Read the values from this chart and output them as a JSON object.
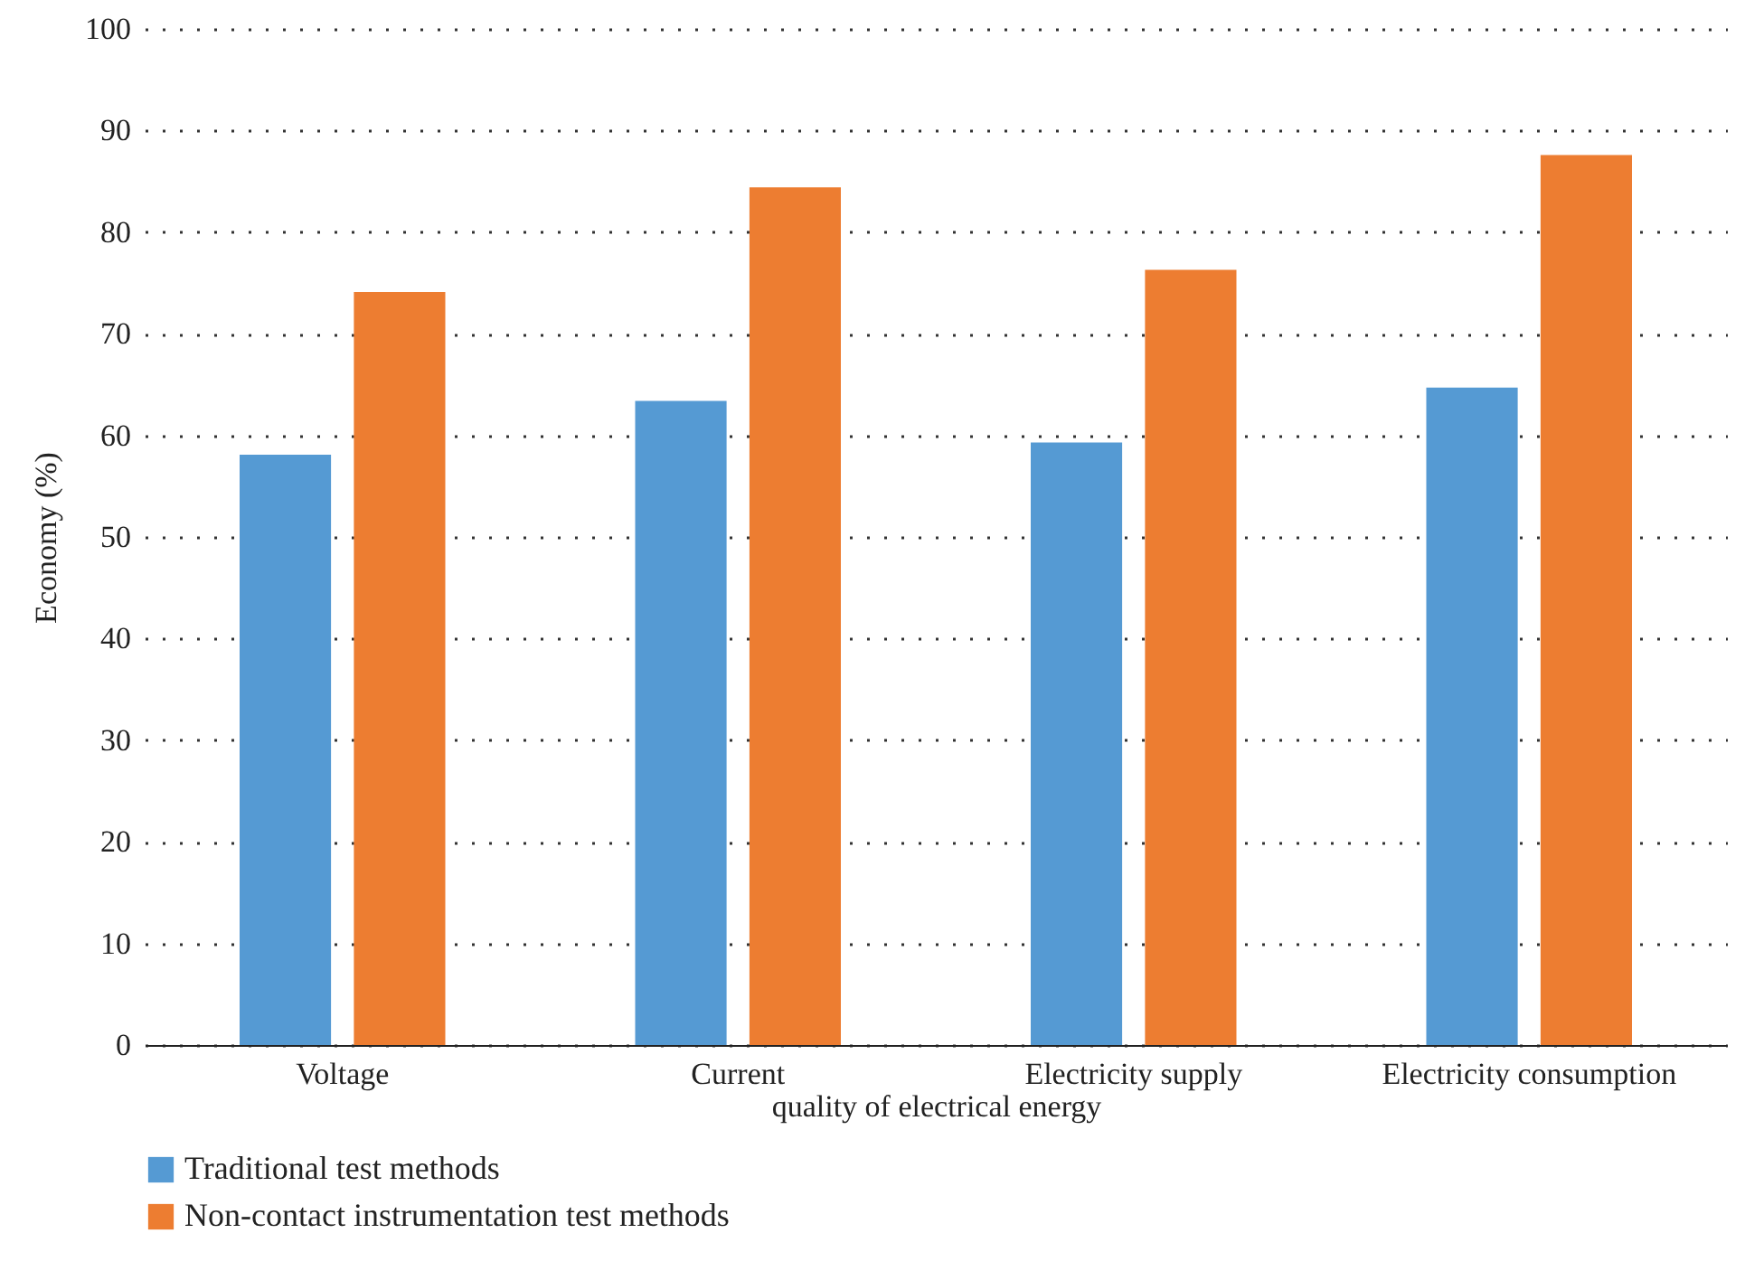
{
  "chart_data": {
    "type": "bar",
    "xlabel": "quality of electrical energy",
    "ylabel": "Economy (%)",
    "categories": [
      "Voltage",
      "Current",
      "Electricity supply",
      "Electricity consumption"
    ],
    "series": [
      {
        "name": "Traditional test methods",
        "color": "#559ad3",
        "values": [
          58.1,
          63.4,
          59.3,
          64.7
        ]
      },
      {
        "name": "Non-contact instrumentation test methods",
        "color": "#ed7d31",
        "values": [
          74.1,
          84.4,
          76.3,
          87.6
        ]
      }
    ],
    "ylim": [
      0,
      100
    ],
    "yticks": [
      0,
      10,
      20,
      30,
      40,
      50,
      60,
      70,
      80,
      90,
      100
    ],
    "grid": "y",
    "legend": "bottom left"
  }
}
